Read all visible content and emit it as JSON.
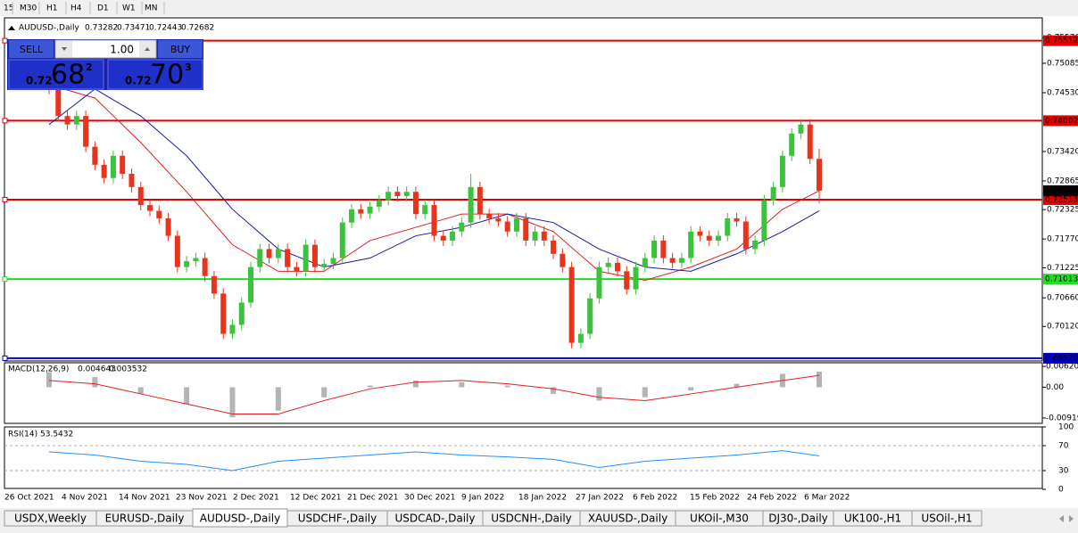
{
  "toolbar": {
    "timeframes": [
      "15",
      "M30",
      "H1",
      "H4",
      "D1",
      "W1",
      "MN"
    ]
  },
  "trade_panel": {
    "sell_label": "SELL",
    "buy_label": "BUY",
    "volume": "1.00",
    "sell_price": {
      "prefix": "0.72",
      "big": "68",
      "small": "2"
    },
    "buy_price": {
      "prefix": "0.72",
      "big": "70",
      "small": "3"
    }
  },
  "chart_data": [
    {
      "type": "candlestick",
      "title": "AUDUSD-,Daily",
      "open": [
        0.747,
        0.746,
        0.7409,
        0.7393,
        0.7409,
        0.7351,
        0.7317,
        0.7292,
        0.7334,
        0.73,
        0.7275,
        0.7241,
        0.723,
        0.7216,
        0.7183,
        0.7124,
        0.7135,
        0.7141,
        0.7107,
        0.7074,
        0.6998,
        0.7015,
        0.7057,
        0.7124,
        0.7158,
        0.7141,
        0.7158,
        0.7124,
        0.7116,
        0.7166,
        0.7124,
        0.713,
        0.7141,
        0.7208,
        0.7233,
        0.7225,
        0.7238,
        0.725,
        0.7266,
        0.7258,
        0.7266,
        0.7224,
        0.7241,
        0.7183,
        0.7174,
        0.7191,
        0.7208,
        0.7275,
        0.7224,
        0.7216,
        0.721,
        0.7191,
        0.7216,
        0.7174,
        0.7191,
        0.7174,
        0.7149,
        0.7124,
        0.6981,
        0.6998,
        0.7065,
        0.7124,
        0.7132,
        0.7116,
        0.7082,
        0.7124,
        0.7141,
        0.7174,
        0.7141,
        0.7132,
        0.7141,
        0.7191,
        0.7183,
        0.7174,
        0.7183,
        0.7216,
        0.721,
        0.7158,
        0.7174,
        0.725,
        0.7275,
        0.7334,
        0.7376,
        0.7393,
        0.73282
      ],
      "high": [
        0.748,
        0.747,
        0.7419,
        0.7419,
        0.7419,
        0.7361,
        0.7327,
        0.7344,
        0.7344,
        0.731,
        0.7285,
        0.7251,
        0.724,
        0.7226,
        0.7193,
        0.7145,
        0.7151,
        0.7151,
        0.7117,
        0.7084,
        0.7025,
        0.7067,
        0.7134,
        0.7168,
        0.7168,
        0.7168,
        0.7168,
        0.7134,
        0.7176,
        0.7176,
        0.714,
        0.7151,
        0.7218,
        0.7243,
        0.7243,
        0.7248,
        0.726,
        0.7276,
        0.7276,
        0.7276,
        0.7276,
        0.7251,
        0.7251,
        0.7193,
        0.7201,
        0.7218,
        0.73,
        0.7285,
        0.7234,
        0.7226,
        0.722,
        0.7226,
        0.7226,
        0.7201,
        0.7201,
        0.7184,
        0.7159,
        0.7134,
        0.7008,
        0.7075,
        0.7134,
        0.7142,
        0.7142,
        0.7126,
        0.7134,
        0.7151,
        0.7184,
        0.7184,
        0.7151,
        0.7151,
        0.7201,
        0.7201,
        0.7193,
        0.7193,
        0.7226,
        0.7226,
        0.722,
        0.7184,
        0.726,
        0.7285,
        0.7344,
        0.7386,
        0.7403,
        0.7403,
        0.73471
      ],
      "low": [
        0.745,
        0.7399,
        0.7383,
        0.7383,
        0.7341,
        0.7307,
        0.7282,
        0.7282,
        0.729,
        0.7265,
        0.7231,
        0.722,
        0.7206,
        0.7173,
        0.7114,
        0.7114,
        0.7125,
        0.7097,
        0.7064,
        0.6988,
        0.6988,
        0.7005,
        0.7047,
        0.7114,
        0.7131,
        0.7131,
        0.7114,
        0.7106,
        0.7106,
        0.7114,
        0.7114,
        0.712,
        0.7131,
        0.7198,
        0.7215,
        0.7215,
        0.7228,
        0.724,
        0.7248,
        0.7248,
        0.7214,
        0.7214,
        0.7173,
        0.7164,
        0.7164,
        0.7181,
        0.7198,
        0.7214,
        0.7206,
        0.72,
        0.7181,
        0.7181,
        0.7164,
        0.7164,
        0.7164,
        0.7139,
        0.7114,
        0.6971,
        0.6971,
        0.6988,
        0.7055,
        0.7114,
        0.7106,
        0.7072,
        0.7072,
        0.7114,
        0.7131,
        0.7131,
        0.7122,
        0.7122,
        0.7131,
        0.7173,
        0.7164,
        0.7164,
        0.7173,
        0.72,
        0.7148,
        0.7148,
        0.7164,
        0.724,
        0.7265,
        0.7324,
        0.7366,
        0.73182,
        0.72443
      ],
      "close": [
        0.746,
        0.7409,
        0.7393,
        0.7409,
        0.7351,
        0.7317,
        0.7292,
        0.7334,
        0.73,
        0.7275,
        0.7241,
        0.723,
        0.7216,
        0.7183,
        0.7124,
        0.7135,
        0.7141,
        0.7107,
        0.7074,
        0.6998,
        0.7015,
        0.7057,
        0.7124,
        0.7158,
        0.7141,
        0.7158,
        0.7124,
        0.7116,
        0.7166,
        0.7124,
        0.713,
        0.7141,
        0.7208,
        0.7233,
        0.7225,
        0.7238,
        0.725,
        0.7266,
        0.7258,
        0.7266,
        0.7224,
        0.7241,
        0.7183,
        0.7174,
        0.7191,
        0.7208,
        0.7275,
        0.7224,
        0.7216,
        0.721,
        0.7191,
        0.7216,
        0.7174,
        0.7191,
        0.7174,
        0.7149,
        0.7124,
        0.6981,
        0.6998,
        0.7065,
        0.7124,
        0.7132,
        0.7116,
        0.7082,
        0.7124,
        0.7141,
        0.7174,
        0.7141,
        0.7132,
        0.7141,
        0.7191,
        0.7183,
        0.7174,
        0.7183,
        0.7216,
        0.721,
        0.7158,
        0.7174,
        0.725,
        0.7275,
        0.7334,
        0.7376,
        0.7393,
        0.73282,
        0.72682
      ],
      "up_color": "#3cc23c",
      "down_color": "#e8341c",
      "ma_index": [
        0,
        5,
        10,
        15,
        20,
        25,
        30,
        35,
        40,
        45,
        50,
        55,
        60,
        65,
        70,
        75,
        80,
        84
      ],
      "moving_averages": [
        {
          "color": "#e02020",
          "values": [
            0.7468,
            0.7443,
            0.7359,
            0.7266,
            0.7166,
            0.7116,
            0.7116,
            0.7174,
            0.7199,
            0.7224,
            0.7224,
            0.7191,
            0.7116,
            0.7099,
            0.7124,
            0.7158,
            0.7233,
            0.7268
          ]
        },
        {
          "color": "#1a1aa0",
          "values": [
            0.7393,
            0.746,
            0.7409,
            0.7334,
            0.7233,
            0.7158,
            0.7124,
            0.7141,
            0.7183,
            0.7199,
            0.7224,
            0.7208,
            0.7158,
            0.7124,
            0.7116,
            0.7149,
            0.7191,
            0.723
          ]
        }
      ],
      "levels": [
        {
          "value": 0.75512,
          "color": "#e00000"
        },
        {
          "value": 0.74002,
          "color": "#e00000"
        },
        {
          "value": 0.72513,
          "color": "#e00000"
        },
        {
          "value": 0.71013,
          "color": "#22dd22"
        },
        {
          "value": {
            "value": 0.6952,
            "label": "0.69520"
          },
          "color": "#0000cc"
        }
      ],
      "ylim": [
        0.69468,
        0.75943
      ],
      "yticks": [
        {
          "value": 0.7557,
          "label": "0.75570"
        },
        0.75085,
        {
          "value": 0.7453,
          "label": "0.74530"
        },
        {
          "value": 0.7342,
          "label": "0.73420"
        },
        0.72865,
        0.72325,
        {
          "value": 0.7177,
          "label": "0.71770"
        },
        0.71225,
        {
          "value": 0.7066,
          "label": "0.70660"
        },
        {
          "value": 0.7012,
          "label": "0.70120"
        }
      ],
      "dates": [
        "26 Oct 2021",
        "4 Nov 2021",
        "14 Nov 2021",
        "23 Nov 2021",
        "2 Dec 2021",
        "12 Dec 2021",
        "21 Dec 2021",
        "30 Dec 2021",
        "9 Jan 2022",
        "18 Jan 2022",
        "27 Jan 2022",
        "6 Feb 2022",
        "15 Feb 2022",
        "24 Feb 2022",
        "6 Mar 2022"
      ]
    },
    {
      "type": "macd",
      "title": "MACD(12,26,9)",
      "index": [
        0,
        5,
        10,
        15,
        20,
        25,
        30,
        35,
        40,
        45,
        50,
        55,
        60,
        65,
        70,
        75,
        80,
        84
      ],
      "histogram": [
        0.0045,
        0.003,
        -0.002,
        -0.005,
        -0.009,
        -0.007,
        -0.003,
        0.0005,
        0.002,
        0.0015,
        0.0005,
        -0.002,
        -0.004,
        -0.003,
        -0.001,
        0.001,
        0.004,
        0.004643
      ],
      "signal": [
        0.002,
        0.001,
        -0.002,
        -0.005,
        -0.008,
        -0.008,
        -0.004,
        -0.0005,
        0.0015,
        0.002,
        0.001,
        -0.0005,
        -0.003,
        -0.004,
        -0.002,
        0,
        0.002,
        0.003532
      ],
      "histogram_color": "#b4b4b4",
      "signal_color": "#e02020",
      "ylim": [
        -0.0108,
        0.0073
      ],
      "yticks": [
        0.006201,
        {
          "value": 0,
          "label": "0.00"
        },
        -0.009194
      ]
    },
    {
      "type": "line",
      "title": "RSI(14)",
      "index": [
        0,
        5,
        10,
        15,
        20,
        25,
        30,
        35,
        40,
        45,
        50,
        55,
        60,
        65,
        70,
        75,
        80,
        84
      ],
      "values": [
        60,
        55,
        45,
        40,
        30,
        45,
        50,
        55,
        60,
        55,
        52,
        48,
        35,
        45,
        50,
        55,
        62,
        53.5432
      ],
      "color": "#1e90ff",
      "levels": [
        70,
        30
      ],
      "ylim": [
        0,
        100
      ],
      "yticks": [
        100,
        70,
        30,
        0
      ]
    }
  ],
  "tabs": [
    "USDX,Weekly",
    "EURUSD-,Daily",
    "AUDUSD-,Daily",
    "USDCHF-,Daily",
    "USDCAD-,Daily",
    "USDCNH-,Daily",
    "XAUUSD-,Daily",
    "UKOil-,M30",
    "DJ30-,Daily",
    "UK100-,H1",
    "USOil-,H1"
  ],
  "active_tab": 2
}
